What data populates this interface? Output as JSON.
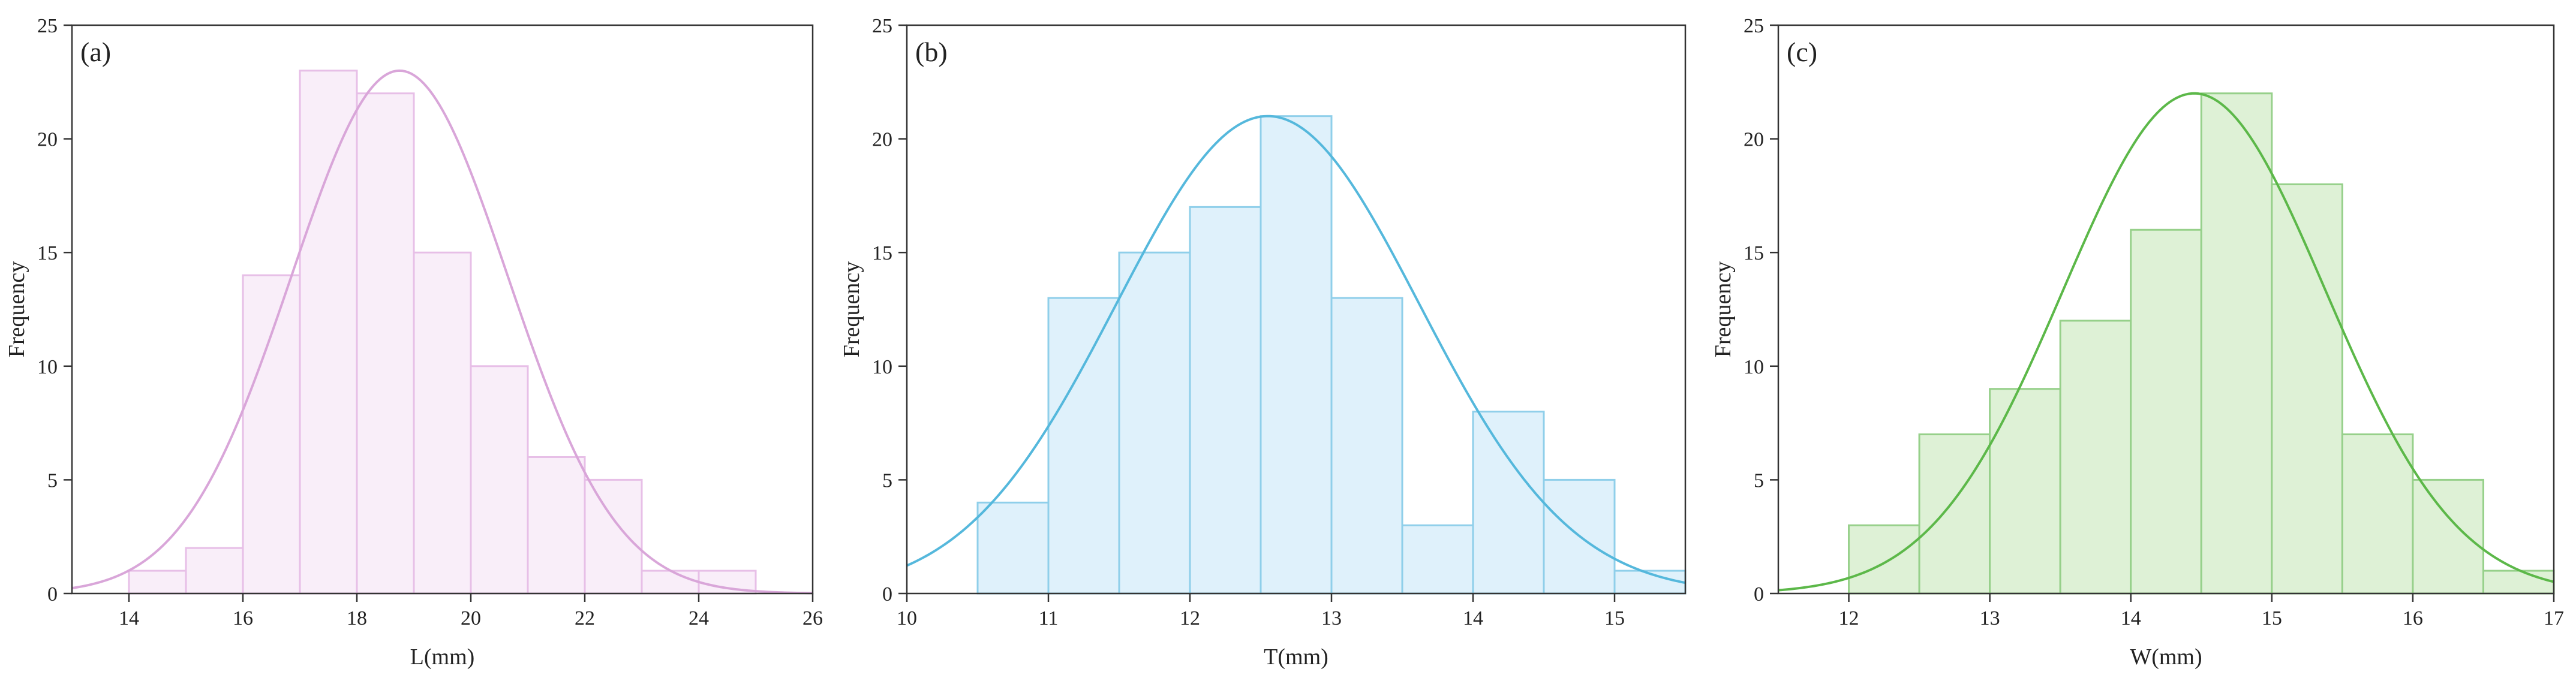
{
  "chart_data": [
    {
      "type": "bar",
      "panel_label": "(a)",
      "xlabel": "L(mm)",
      "ylabel": "Frequency",
      "xlim": [
        13,
        26
      ],
      "ylim": [
        0,
        25
      ],
      "xticks": [
        14,
        16,
        18,
        20,
        22,
        24,
        26
      ],
      "yticks": [
        0,
        5,
        10,
        15,
        20,
        25
      ],
      "bins": [
        {
          "x0": 14,
          "x1": 15,
          "count": 1
        },
        {
          "x0": 15,
          "x1": 16,
          "count": 2
        },
        {
          "x0": 16,
          "x1": 17,
          "count": 14
        },
        {
          "x0": 17,
          "x1": 18,
          "count": 23
        },
        {
          "x0": 18,
          "x1": 19,
          "count": 22
        },
        {
          "x0": 19,
          "x1": 20,
          "count": 15
        },
        {
          "x0": 20,
          "x1": 21,
          "count": 10
        },
        {
          "x0": 21,
          "x1": 22,
          "count": 6
        },
        {
          "x0": 22,
          "x1": 23,
          "count": 5
        },
        {
          "x0": 23,
          "x1": 24,
          "count": 1
        },
        {
          "x0": 24,
          "x1": 25,
          "count": 1
        }
      ],
      "normal_fit": {
        "mean": 18.75,
        "sd": 1.9,
        "peak": 23
      },
      "bar_fill": "#f9eef9",
      "bar_stroke": "#e7bfe7",
      "curve_color": "#d9a6d9",
      "grid": false
    },
    {
      "type": "bar",
      "panel_label": "(b)",
      "xlabel": "T(mm)",
      "ylabel": "Frequency",
      "xlim": [
        10,
        15.5
      ],
      "ylim": [
        0,
        25
      ],
      "xticks": [
        10,
        11,
        12,
        13,
        14,
        15
      ],
      "yticks": [
        0,
        5,
        10,
        15,
        20,
        25
      ],
      "bins": [
        {
          "x0": 10.5,
          "x1": 11.0,
          "count": 4
        },
        {
          "x0": 11.0,
          "x1": 11.5,
          "count": 13
        },
        {
          "x0": 11.5,
          "x1": 12.0,
          "count": 15
        },
        {
          "x0": 12.0,
          "x1": 12.5,
          "count": 17
        },
        {
          "x0": 12.5,
          "x1": 13.0,
          "count": 21
        },
        {
          "x0": 13.0,
          "x1": 13.5,
          "count": 13
        },
        {
          "x0": 13.5,
          "x1": 14.0,
          "count": 3
        },
        {
          "x0": 14.0,
          "x1": 14.5,
          "count": 8
        },
        {
          "x0": 14.5,
          "x1": 15.0,
          "count": 5
        },
        {
          "x0": 15.0,
          "x1": 15.5,
          "count": 1
        }
      ],
      "normal_fit": {
        "mean": 12.55,
        "sd": 1.07,
        "peak": 21
      },
      "bar_fill": "#dff1fb",
      "bar_stroke": "#8fcfea",
      "curve_color": "#55b8dc",
      "grid": false
    },
    {
      "type": "bar",
      "panel_label": "(c)",
      "xlabel": "W(mm)",
      "ylabel": "Frequency",
      "xlim": [
        11.5,
        17
      ],
      "ylim": [
        0,
        25
      ],
      "xticks": [
        12,
        13,
        14,
        15,
        16,
        17
      ],
      "yticks": [
        0,
        5,
        10,
        15,
        20,
        25
      ],
      "bins": [
        {
          "x0": 12.0,
          "x1": 12.5,
          "count": 3
        },
        {
          "x0": 12.5,
          "x1": 13.0,
          "count": 7
        },
        {
          "x0": 13.0,
          "x1": 13.5,
          "count": 9
        },
        {
          "x0": 13.5,
          "x1": 14.0,
          "count": 12
        },
        {
          "x0": 14.0,
          "x1": 14.5,
          "count": 16
        },
        {
          "x0": 14.5,
          "x1": 15.0,
          "count": 22
        },
        {
          "x0": 15.0,
          "x1": 15.5,
          "count": 18
        },
        {
          "x0": 15.5,
          "x1": 16.0,
          "count": 7
        },
        {
          "x0": 16.0,
          "x1": 16.5,
          "count": 5
        },
        {
          "x0": 16.5,
          "x1": 17.0,
          "count": 1
        }
      ],
      "normal_fit": {
        "mean": 14.45,
        "sd": 0.93,
        "peak": 22
      },
      "bar_fill": "#def1d6",
      "bar_stroke": "#96d08a",
      "curve_color": "#5cb849",
      "grid": false
    }
  ]
}
